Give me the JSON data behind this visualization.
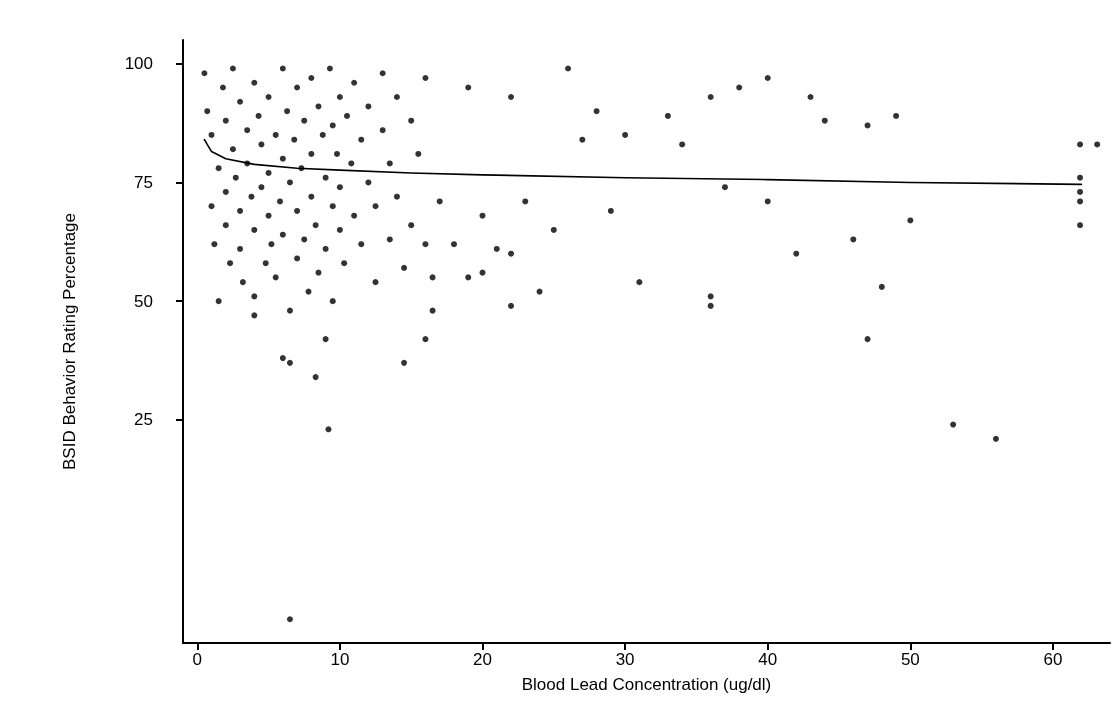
{
  "chart_data": {
    "type": "scatter",
    "xlabel": "Blood Lead Concentration (ug/dl)",
    "ylabel": "BSID Behavior Rating Percentage",
    "xlim": [
      -1,
      64
    ],
    "xticks": [
      0,
      10,
      20,
      30,
      40,
      50,
      60
    ],
    "ylim": [
      -22,
      105
    ],
    "yticks": [
      25,
      50,
      75,
      100
    ],
    "grid": false,
    "marker": "circle",
    "series": [
      {
        "color": "#000000",
        "x": [
          0.5,
          0.7,
          1,
          1,
          1.2,
          1.5,
          1.5,
          1.8,
          2,
          2,
          2,
          2.3,
          2.5,
          2.5,
          2.7,
          3,
          3,
          3,
          3.2,
          3.5,
          3.5,
          3.8,
          4,
          4,
          4,
          4,
          4.3,
          4.5,
          4.5,
          4.8,
          5,
          5,
          5,
          5.2,
          5.5,
          5.5,
          5.8,
          6,
          6,
          6,
          6,
          6.3,
          6.5,
          6.5,
          6.5,
          6.5,
          6.8,
          7,
          7,
          7,
          7.3,
          7.5,
          7.5,
          7.8,
          8,
          8,
          8,
          8.3,
          8.3,
          8.5,
          8.5,
          8.8,
          9,
          9,
          9,
          9.2,
          9.3,
          9.5,
          9.5,
          9.5,
          9.8,
          10,
          10,
          10,
          10.3,
          10.5,
          10.8,
          11,
          11,
          11.5,
          11.5,
          12,
          12,
          12.5,
          12.5,
          13,
          13,
          13.5,
          13.5,
          14,
          14,
          14.5,
          14.5,
          15,
          15,
          15.5,
          16,
          16,
          16,
          16.5,
          16.5,
          17,
          18,
          19,
          19,
          20,
          20,
          21,
          22,
          22,
          22,
          23,
          24,
          25,
          26,
          27,
          28,
          29,
          30,
          31,
          33,
          34,
          36,
          36,
          36,
          37,
          38,
          40,
          40,
          42,
          43,
          44,
          46,
          47,
          47,
          48,
          49,
          50,
          53,
          56,
          61.9,
          61.9,
          61.9,
          61.9,
          61.9,
          63.1
        ],
        "values": [
          98,
          90,
          85,
          70,
          62,
          78,
          50,
          95,
          88,
          73,
          66,
          58,
          99,
          82,
          76,
          92,
          69,
          61,
          54,
          86,
          79,
          72,
          96,
          65,
          51,
          47,
          89,
          83,
          74,
          58,
          93,
          77,
          68,
          62,
          85,
          55,
          71,
          99,
          80,
          64,
          38,
          90,
          75,
          48,
          37,
          -17,
          84,
          95,
          69,
          59,
          78,
          88,
          63,
          52,
          97,
          81,
          72,
          66,
          34,
          91,
          56,
          85,
          76,
          61,
          42,
          23,
          99,
          87,
          70,
          50,
          81,
          93,
          74,
          65,
          58,
          89,
          79,
          96,
          68,
          84,
          62,
          75,
          91,
          70,
          54,
          86,
          98,
          79,
          63,
          93,
          72,
          57,
          37,
          88,
          66,
          81,
          97,
          62,
          42,
          55,
          48,
          71,
          62,
          95,
          55,
          56,
          68,
          61,
          93,
          60,
          49,
          71,
          52,
          65,
          99,
          84,
          90,
          69,
          85,
          54,
          89,
          83,
          93,
          49,
          51,
          74,
          95,
          97,
          71,
          60,
          93,
          88,
          63,
          42,
          87,
          53,
          89,
          67,
          24,
          21,
          83,
          76,
          73,
          71,
          66,
          83
        ]
      },
      {
        "type": "line",
        "color": "#000000",
        "marker": "none",
        "x": [
          0.5,
          1,
          2,
          4,
          7,
          10,
          15,
          20,
          30,
          40,
          50,
          62
        ],
        "values": [
          84,
          81.5,
          80,
          78.8,
          78,
          77.6,
          77,
          76.6,
          76,
          75.6,
          75,
          74.6
        ]
      }
    ]
  }
}
